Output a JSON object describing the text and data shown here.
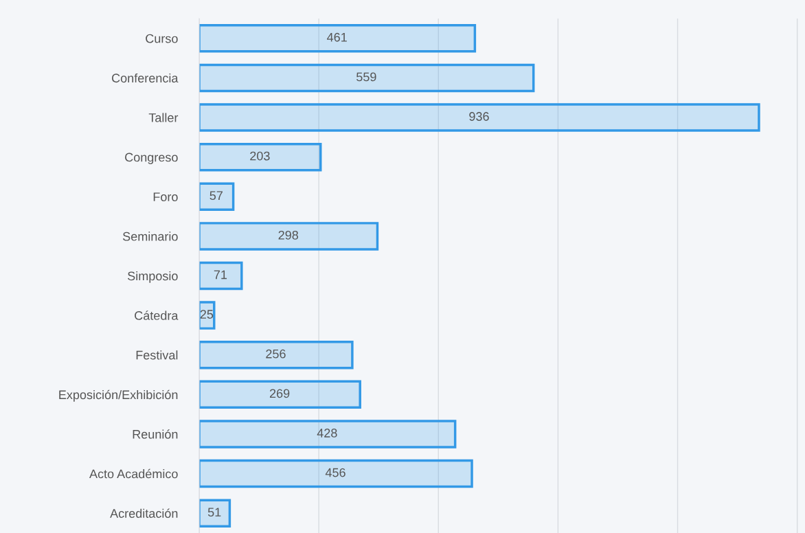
{
  "chart_data": {
    "type": "bar",
    "orientation": "horizontal",
    "categories": [
      "Curso",
      "Conferencia",
      "Taller",
      "Congreso",
      "Foro",
      "Seminario",
      "Simposio",
      "Cátedra",
      "Festival",
      "Exposición/Exhibición",
      "Reunión",
      "Acto Académico",
      "Acreditación"
    ],
    "series": [
      {
        "color": "#3399e6",
        "values": [
          461,
          559,
          936,
          203,
          57,
          298,
          71,
          25,
          256,
          269,
          428,
          456,
          51
        ]
      }
    ],
    "xlim": [
      0,
      1013
    ],
    "xticks": [
      {
        "value": 0,
        "label": null
      },
      {
        "value": 200,
        "label": null
      },
      {
        "value": 400,
        "label": null
      },
      {
        "value": 600,
        "label": null
      },
      {
        "value": 800,
        "label": null
      },
      {
        "value": 1000,
        "label": null
      }
    ],
    "tick_labels": "y",
    "grid": "x",
    "data_labels": true,
    "legend": false
  }
}
